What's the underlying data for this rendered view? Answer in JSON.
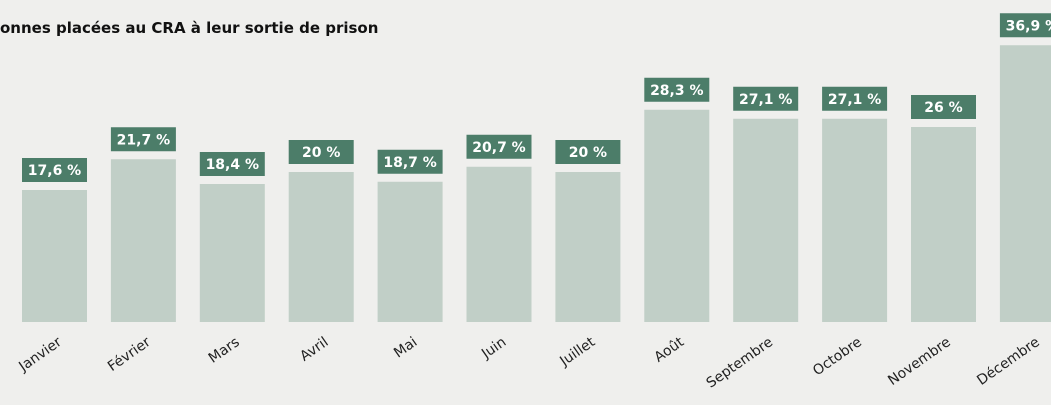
{
  "chart_data": {
    "type": "bar",
    "title": "onnes placées au CRA à leur sortie de prison",
    "categories": [
      "Janvier",
      "Février",
      "Mars",
      "Avril",
      "Mai",
      "Juin",
      "Juillet",
      "Août",
      "Septembre",
      "Octobre",
      "Novembre",
      "Décembre"
    ],
    "values": [
      17.6,
      21.7,
      18.4,
      20,
      18.7,
      20.7,
      20,
      28.3,
      27.1,
      27.1,
      26,
      36.9
    ],
    "value_labels": [
      "17,6 %",
      "21,7 %",
      "18,4 %",
      "20 %",
      "18,7 %",
      "20,7 %",
      "20 %",
      "28,3 %",
      "27,1 %",
      "27,1 %",
      "26 %",
      "36,9 %"
    ],
    "color": "#c1cfc7",
    "label_color": "#4c7d69"
  }
}
